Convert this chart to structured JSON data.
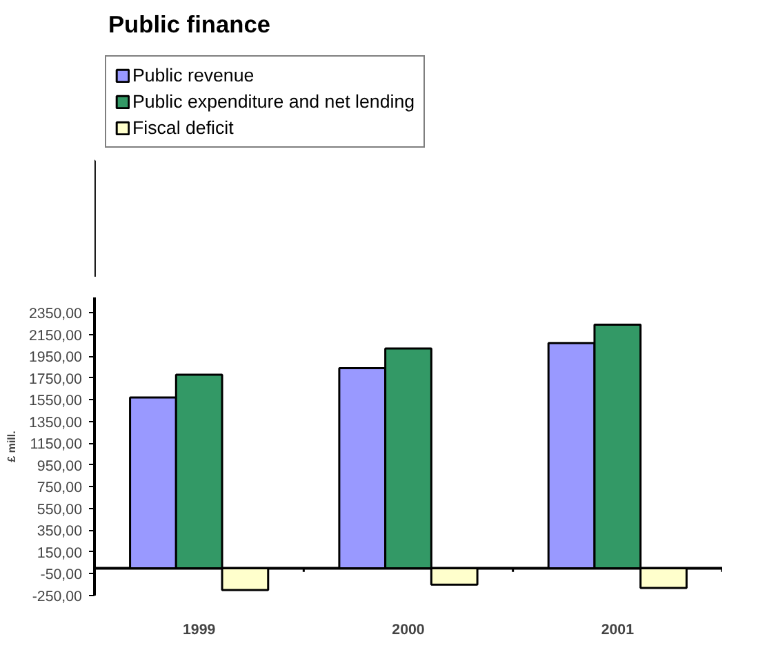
{
  "chart_data": {
    "type": "bar",
    "title": "Public finance",
    "ylabel": "£ mill.",
    "categories": [
      "1999",
      "2000",
      "2001"
    ],
    "series": [
      {
        "name": "Public revenue",
        "color": "#9999ff",
        "values": [
          1570,
          1840,
          2070
        ]
      },
      {
        "name": "Public expenditure and net lending",
        "color": "#339966",
        "values": [
          1780,
          2020,
          2240
        ]
      },
      {
        "name": "Fiscal deficit",
        "color": "#ffffcc",
        "values": [
          -200,
          -150,
          -180
        ]
      }
    ],
    "ylim": [
      -250,
      2490
    ],
    "yticks": [
      {
        "value": -250,
        "label": "-250,00"
      },
      {
        "value": -50,
        "label": "-50,00"
      },
      {
        "value": 150,
        "label": "150,00"
      },
      {
        "value": 350,
        "label": "350,00"
      },
      {
        "value": 550,
        "label": "550,00"
      },
      {
        "value": 750,
        "label": "750,00"
      },
      {
        "value": 950,
        "label": "950,00"
      },
      {
        "value": 1150,
        "label": "1150,00"
      },
      {
        "value": 1350,
        "label": "1350,00"
      },
      {
        "value": 1550,
        "label": "1550,00"
      },
      {
        "value": 1750,
        "label": "1750,00"
      },
      {
        "value": 1950,
        "label": "1950,00"
      },
      {
        "value": 2150,
        "label": "2150,00"
      },
      {
        "value": 2350,
        "label": "2350,00"
      }
    ],
    "grid": false,
    "legend": "top left"
  }
}
